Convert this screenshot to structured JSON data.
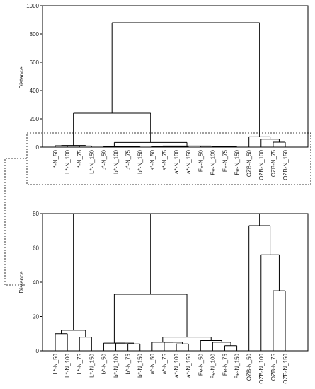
{
  "chart_data": [
    {
      "type": "dendrogram",
      "ylabel": "Distance",
      "ylim": [
        0,
        1000
      ],
      "yticks": [
        0,
        200,
        400,
        600,
        800,
        1000
      ],
      "grid": false,
      "leaves": [
        "L*-N_50",
        "L*-N_100",
        "L*-N_75",
        "L*-N_150",
        "b*-N_50",
        "b*-N_100",
        "b*-N_75",
        "b*-N_150",
        "a*-N_50",
        "a*-N_75",
        "a*-N_100",
        "a*-N_150",
        "Fe-N_50",
        "Fe-N_100",
        "Fe-N_75",
        "Fe-N_150",
        "OZB-N_50",
        "OZB-N_100",
        "OZB-N_75",
        "OZB-N_150"
      ],
      "merges": [
        {
          "id": 20,
          "left": 2,
          "right": 3,
          "distance": 8
        },
        {
          "id": 21,
          "left": 0,
          "right": 1,
          "distance": 10
        },
        {
          "id": 22,
          "left": 21,
          "right": 20,
          "distance": 12
        },
        {
          "id": 23,
          "left": 6,
          "right": 7,
          "distance": 4
        },
        {
          "id": 24,
          "left": 5,
          "right": 23,
          "distance": 4.5
        },
        {
          "id": 25,
          "left": 4,
          "right": 24,
          "distance": 4.5
        },
        {
          "id": 26,
          "left": 10,
          "right": 11,
          "distance": 4
        },
        {
          "id": 27,
          "left": 9,
          "right": 26,
          "distance": 5
        },
        {
          "id": 28,
          "left": 8,
          "right": 27,
          "distance": 5
        },
        {
          "id": 29,
          "left": 14,
          "right": 15,
          "distance": 3
        },
        {
          "id": 30,
          "left": 13,
          "right": 29,
          "distance": 5
        },
        {
          "id": 31,
          "left": 12,
          "right": 30,
          "distance": 6
        },
        {
          "id": 32,
          "left": 28,
          "right": 31,
          "distance": 8
        },
        {
          "id": 33,
          "left": 25,
          "right": 32,
          "distance": 33
        },
        {
          "id": 34,
          "left": 22,
          "right": 33,
          "distance": 240
        },
        {
          "id": 35,
          "left": 18,
          "right": 19,
          "distance": 35
        },
        {
          "id": 36,
          "left": 17,
          "right": 35,
          "distance": 56
        },
        {
          "id": 37,
          "left": 16,
          "right": 36,
          "distance": 73
        },
        {
          "id": 38,
          "left": 34,
          "right": 37,
          "distance": 880
        }
      ]
    },
    {
      "type": "dendrogram",
      "ylabel": "Distance",
      "ylim": [
        0,
        80
      ],
      "yticks": [
        0,
        20,
        40,
        60,
        80
      ],
      "grid": false,
      "leaves": [
        "L*-N_50",
        "L*-N_100",
        "L*-N_75",
        "L*-N_150",
        "b*-N_50",
        "b*-N_100",
        "b*-N_75",
        "b*-N_150",
        "a*-N_50",
        "a*-N_75",
        "a*-N_100",
        "a*-N_150",
        "Fe-N_50",
        "Fe-N_100",
        "Fe-N_75",
        "Fe-N_150",
        "OZB-N_50",
        "OZB-N_100",
        "OZB-N_75",
        "OZB-N_150"
      ],
      "note_ref": "zoom of Distance 0–80 region of upper dendrogram"
    }
  ]
}
